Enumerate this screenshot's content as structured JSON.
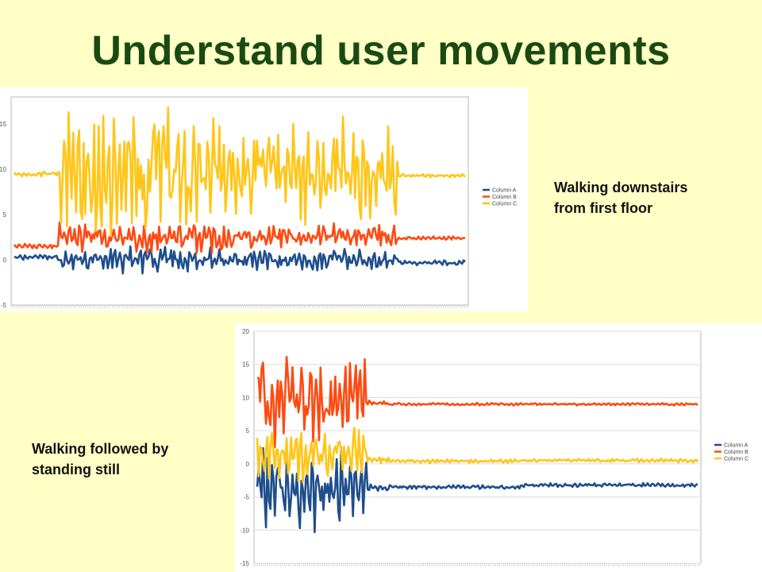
{
  "slide": {
    "title": "Understand user movements",
    "caption_top": "Walking downstairs\nfrom first floor",
    "caption_top_line1": "Walking downstairs",
    "caption_top_line2": "from first floor",
    "caption_bottom_line1": "Walking followed by",
    "caption_bottom_line2": "standing still"
  },
  "colors": {
    "background": "#ffffc6",
    "title": "#1a4a12",
    "column_a": "#1f4e8c",
    "column_b": "#ff4a12",
    "column_c": "#ffc61a"
  },
  "chart_data": [
    {
      "type": "line",
      "ylim": [
        -5,
        18
      ],
      "yticks": [
        "15",
        "10",
        "5",
        "0",
        "-5"
      ],
      "grid": false,
      "legend": "right",
      "n_points": 300,
      "series": [
        {
          "name": "Column A",
          "color": "#1f4e8c",
          "baseline": [
            0.3,
            0.0,
            0.0,
            -0.3
          ],
          "amplitude": [
            0.3,
            1.2,
            1.2,
            0.3
          ],
          "segments": [
            0.1,
            0.85
          ]
        },
        {
          "name": "Column B",
          "color": "#ff4a12",
          "baseline": [
            1.5,
            2.5,
            2.6,
            2.4
          ],
          "amplitude": [
            0.3,
            1.4,
            1.4,
            0.2
          ],
          "segments": [
            0.1,
            0.85
          ]
        },
        {
          "name": "Column C",
          "color": "#ffc61a",
          "baseline": [
            9.5,
            9.8,
            9.8,
            9.3
          ],
          "amplitude": [
            0.3,
            6.0,
            6.0,
            0.2
          ],
          "segments": [
            0.1,
            0.85
          ]
        }
      ]
    },
    {
      "type": "line",
      "ylim": [
        -15,
        20
      ],
      "yticks": [
        "20",
        "15",
        "10",
        "5",
        "0",
        "-5",
        "-10",
        "-15"
      ],
      "grid": true,
      "legend": "right",
      "n_points": 300,
      "series": [
        {
          "name": "Column A",
          "color": "#1f4e8c",
          "baseline": [
            -4.0,
            -3.8,
            -3.5,
            -3.2
          ],
          "amplitude": [
            5.0,
            0.6,
            0.3,
            0.3
          ],
          "segments": [
            0.25,
            0.3
          ]
        },
        {
          "name": "Column B",
          "color": "#ff4a12",
          "baseline": [
            9.5,
            9.2,
            9.0,
            9.0
          ],
          "amplitude": [
            5.5,
            0.5,
            0.2,
            0.2
          ],
          "segments": [
            0.25,
            0.3
          ]
        },
        {
          "name": "Column C",
          "color": "#ffc61a",
          "baseline": [
            1.5,
            0.6,
            0.4,
            0.5
          ],
          "amplitude": [
            3.5,
            0.4,
            0.3,
            0.3
          ],
          "segments": [
            0.25,
            0.3
          ]
        }
      ]
    }
  ]
}
